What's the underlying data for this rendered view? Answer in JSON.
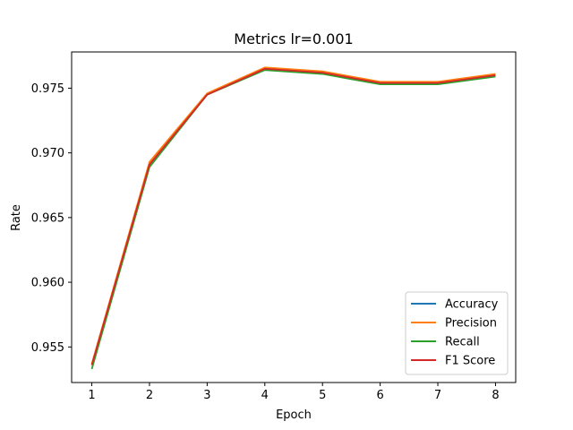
{
  "chart_data": {
    "type": "line",
    "title": "Metrics lr=0.001",
    "xlabel": "Epoch",
    "ylabel": "Rate",
    "x": [
      1,
      2,
      3,
      4,
      5,
      6,
      7,
      8
    ],
    "xlim": [
      0.65,
      8.35
    ],
    "ylim": [
      0.95225,
      0.9778
    ],
    "xticks": [
      1,
      2,
      3,
      4,
      5,
      6,
      7,
      8
    ],
    "yticks": [
      0.955,
      0.96,
      0.965,
      0.97,
      0.975
    ],
    "ytick_labels": [
      "0.955",
      "0.960",
      "0.965",
      "0.970",
      "0.975"
    ],
    "grid": false,
    "legend_position": "lower right",
    "series": [
      {
        "name": "Accuracy",
        "color": "#1f77b4",
        "values": [
          0.9536,
          0.9691,
          0.9745,
          0.9765,
          0.9762,
          0.9754,
          0.9754,
          0.976
        ]
      },
      {
        "name": "Precision",
        "color": "#ff7f0e",
        "values": [
          0.9537,
          0.9693,
          0.9746,
          0.9766,
          0.9763,
          0.9755,
          0.9755,
          0.9761
        ]
      },
      {
        "name": "Recall",
        "color": "#2ca02c",
        "values": [
          0.9533,
          0.9689,
          0.9745,
          0.9764,
          0.9761,
          0.9753,
          0.9753,
          0.9759
        ]
      },
      {
        "name": "F1 Score",
        "color": "#d62728",
        "values": [
          0.9536,
          0.9691,
          0.9745,
          0.9765,
          0.9762,
          0.9754,
          0.9754,
          0.976
        ]
      }
    ]
  }
}
